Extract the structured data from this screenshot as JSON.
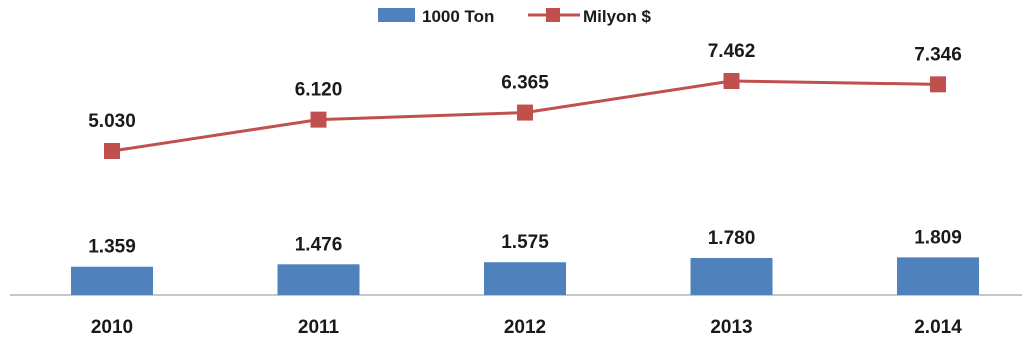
{
  "chart_data": {
    "type": "bar+line",
    "categories": [
      "2010",
      "2011",
      "2012",
      "2013",
      "2.014"
    ],
    "series": [
      {
        "name": "1000 Ton",
        "type": "bar",
        "values": [
          1359,
          1476,
          1575,
          1780,
          1809
        ],
        "labels": [
          "1.359",
          "1.476",
          "1.575",
          "1.780",
          "1.809"
        ],
        "color": "#4f81bd"
      },
      {
        "name": "Milyon $",
        "type": "line",
        "values": [
          5030,
          6120,
          6365,
          7462,
          7346
        ],
        "labels": [
          "5.030",
          "6.120",
          "6.365",
          "7.462",
          "7.346"
        ],
        "color": "#c0504d"
      }
    ],
    "legend_position": "top-center",
    "grid": false,
    "axis": {
      "y_visible": false
    }
  }
}
